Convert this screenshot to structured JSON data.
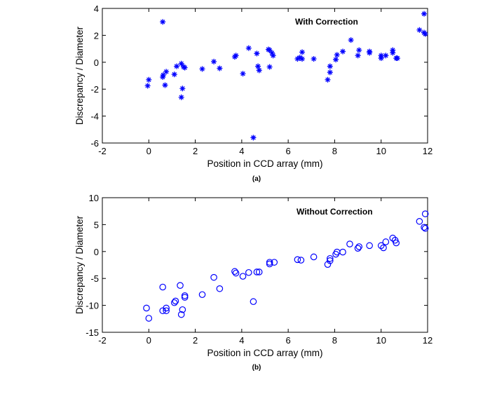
{
  "chart_data": [
    {
      "type": "scatter",
      "panel_label": "(a)",
      "annotation": "With Correction",
      "xlabel": "Position in CCD array (mm)",
      "ylabel": "Discrepancy / Diameter",
      "xlim": [
        -2,
        12
      ],
      "ylim": [
        -6,
        4
      ],
      "xticks": [
        "-2",
        "0",
        "2",
        "4",
        "6",
        "8",
        "10",
        "12"
      ],
      "yticks": [
        "-6",
        "-4",
        "-2",
        "0",
        "2",
        "4"
      ],
      "marker": "asterisk",
      "color": "#0000ff",
      "grid": false,
      "points": [
        [
          -0.05,
          -1.75
        ],
        [
          0,
          -1.3
        ],
        [
          0.6,
          3.0
        ],
        [
          0.6,
          -1.1
        ],
        [
          0.62,
          -0.95
        ],
        [
          0.7,
          -1.7
        ],
        [
          0.75,
          -0.7
        ],
        [
          1.1,
          -0.9
        ],
        [
          1.2,
          -0.3
        ],
        [
          1.4,
          -0.1
        ],
        [
          1.5,
          -0.35
        ],
        [
          1.55,
          -0.4
        ],
        [
          1.45,
          -1.95
        ],
        [
          1.4,
          -2.6
        ],
        [
          2.3,
          -0.5
        ],
        [
          2.8,
          0.05
        ],
        [
          3.05,
          -0.45
        ],
        [
          3.7,
          0.4
        ],
        [
          3.75,
          0.5
        ],
        [
          4.05,
          -0.85
        ],
        [
          4.3,
          1.05
        ],
        [
          4.65,
          0.65
        ],
        [
          4.7,
          -0.3
        ],
        [
          4.75,
          -0.6
        ],
        [
          4.5,
          -5.6
        ],
        [
          5.15,
          0.95
        ],
        [
          5.2,
          0.9
        ],
        [
          5.3,
          0.7
        ],
        [
          5.35,
          0.5
        ],
        [
          5.2,
          -0.35
        ],
        [
          6.4,
          0.25
        ],
        [
          6.5,
          0.35
        ],
        [
          6.6,
          0.75
        ],
        [
          6.6,
          0.25
        ],
        [
          7.1,
          0.25
        ],
        [
          7.7,
          -1.3
        ],
        [
          7.8,
          -0.3
        ],
        [
          7.8,
          -0.75
        ],
        [
          8.05,
          0.2
        ],
        [
          8.1,
          0.55
        ],
        [
          8.35,
          0.8
        ],
        [
          8.7,
          1.65
        ],
        [
          9.0,
          0.5
        ],
        [
          9.05,
          0.9
        ],
        [
          9.5,
          0.7
        ],
        [
          9.5,
          0.8
        ],
        [
          10.0,
          0.5
        ],
        [
          10.0,
          0.3
        ],
        [
          10.2,
          0.5
        ],
        [
          10.5,
          0.9
        ],
        [
          10.5,
          0.7
        ],
        [
          10.65,
          0.3
        ],
        [
          10.7,
          0.3
        ],
        [
          11.65,
          2.4
        ],
        [
          11.85,
          2.2
        ],
        [
          11.9,
          2.1
        ],
        [
          11.85,
          3.6
        ]
      ]
    },
    {
      "type": "scatter",
      "panel_label": "(b)",
      "annotation": "Without Correction",
      "xlabel": "Position in CCD array (mm)",
      "ylabel": "Discrepancy / Diameter",
      "xlim": [
        -2,
        12
      ],
      "ylim": [
        -15,
        10
      ],
      "xticks": [
        "-2",
        "0",
        "2",
        "4",
        "6",
        "8",
        "10",
        "12"
      ],
      "yticks": [
        "-15",
        "-10",
        "-5",
        "0",
        "5",
        "10"
      ],
      "marker": "circle",
      "color": "#0000ff",
      "grid": false,
      "points": [
        [
          -0.1,
          -10.5
        ],
        [
          0,
          -12.4
        ],
        [
          0.6,
          -6.6
        ],
        [
          0.6,
          -11
        ],
        [
          0.75,
          -10.5
        ],
        [
          0.75,
          -11
        ],
        [
          1.1,
          -9.5
        ],
        [
          1.15,
          -9.2
        ],
        [
          1.35,
          -6.3
        ],
        [
          1.4,
          -11.7
        ],
        [
          1.45,
          -10.8
        ],
        [
          1.55,
          -8.2
        ],
        [
          1.55,
          -8.5
        ],
        [
          2.3,
          -8
        ],
        [
          2.8,
          -4.8
        ],
        [
          3.05,
          -6.9
        ],
        [
          3.7,
          -3.7
        ],
        [
          3.75,
          -4
        ],
        [
          4.05,
          -4.6
        ],
        [
          4.3,
          -3.9
        ],
        [
          4.5,
          -9.3
        ],
        [
          4.65,
          -3.8
        ],
        [
          4.75,
          -3.8
        ],
        [
          5.2,
          -2.3
        ],
        [
          5.2,
          -2
        ],
        [
          5.4,
          -2
        ],
        [
          6.4,
          -1.5
        ],
        [
          6.55,
          -1.6
        ],
        [
          7.1,
          -1
        ],
        [
          7.7,
          -2.4
        ],
        [
          7.8,
          -1.7
        ],
        [
          7.8,
          -1.3
        ],
        [
          8.05,
          -0.5
        ],
        [
          8.1,
          -0.1
        ],
        [
          8.35,
          -0.1
        ],
        [
          8.65,
          1.4
        ],
        [
          9.0,
          0.6
        ],
        [
          9.05,
          0.9
        ],
        [
          9.5,
          1.1
        ],
        [
          10.0,
          1.1
        ],
        [
          10.1,
          0.7
        ],
        [
          10.2,
          1.8
        ],
        [
          10.5,
          2.5
        ],
        [
          10.6,
          2.1
        ],
        [
          10.65,
          1.6
        ],
        [
          11.65,
          5.6
        ],
        [
          11.85,
          4.5
        ],
        [
          11.9,
          4.3
        ],
        [
          11.9,
          7
        ]
      ]
    }
  ]
}
